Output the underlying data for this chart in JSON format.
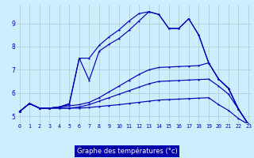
{
  "xlabel": "Graphe des températures (°c)",
  "bg_color": "#cceeff",
  "line_color": "#0000bb",
  "grid_color": "#aacccc",
  "xlabel_bg": "#0000aa",
  "xlabel_fg": "#ffffff",
  "xlim": [
    -0.3,
    23.3
  ],
  "ylim": [
    4.7,
    9.8
  ],
  "xticks": [
    0,
    1,
    2,
    3,
    4,
    5,
    6,
    7,
    8,
    9,
    10,
    11,
    12,
    13,
    14,
    15,
    16,
    17,
    18,
    19,
    20,
    21,
    22,
    23
  ],
  "yticks": [
    5,
    6,
    7,
    8,
    9
  ],
  "hours": [
    0,
    1,
    2,
    3,
    4,
    5,
    6,
    7,
    8,
    9,
    10,
    11,
    12,
    13,
    14,
    15,
    16,
    17,
    18,
    19,
    20,
    21,
    22,
    23
  ],
  "line1_y": [
    5.2,
    5.55,
    5.35,
    5.35,
    5.35,
    5.35,
    5.35,
    5.38,
    5.42,
    5.46,
    5.5,
    5.55,
    5.6,
    5.65,
    5.7,
    5.72,
    5.74,
    5.76,
    5.78,
    5.8,
    5.5,
    5.25,
    4.9,
    4.65
  ],
  "line2_y": [
    5.2,
    5.55,
    5.35,
    5.35,
    5.35,
    5.35,
    5.4,
    5.5,
    5.65,
    5.8,
    5.95,
    6.1,
    6.25,
    6.4,
    6.5,
    6.52,
    6.54,
    6.56,
    6.58,
    6.6,
    6.3,
    5.95,
    5.3,
    4.65
  ],
  "line3_y": [
    5.2,
    5.55,
    5.35,
    5.35,
    5.4,
    5.45,
    5.5,
    5.6,
    5.8,
    6.05,
    6.3,
    6.55,
    6.8,
    7.0,
    7.1,
    7.12,
    7.14,
    7.16,
    7.18,
    7.3,
    6.6,
    6.2,
    5.3,
    4.65
  ],
  "line4_y": [
    5.2,
    5.55,
    5.35,
    5.35,
    5.4,
    5.5,
    7.5,
    6.55,
    7.8,
    8.1,
    8.35,
    8.7,
    9.1,
    9.5,
    9.38,
    8.78,
    8.78,
    9.2,
    8.5,
    7.3,
    6.6,
    6.2,
    5.3,
    4.65
  ],
  "line5_y": [
    5.2,
    5.55,
    5.35,
    5.35,
    5.4,
    5.55,
    7.5,
    7.5,
    8.05,
    8.42,
    8.72,
    9.1,
    9.42,
    9.5,
    9.38,
    8.78,
    8.78,
    9.2,
    8.5,
    7.3,
    6.6,
    6.2,
    5.3,
    4.65
  ]
}
